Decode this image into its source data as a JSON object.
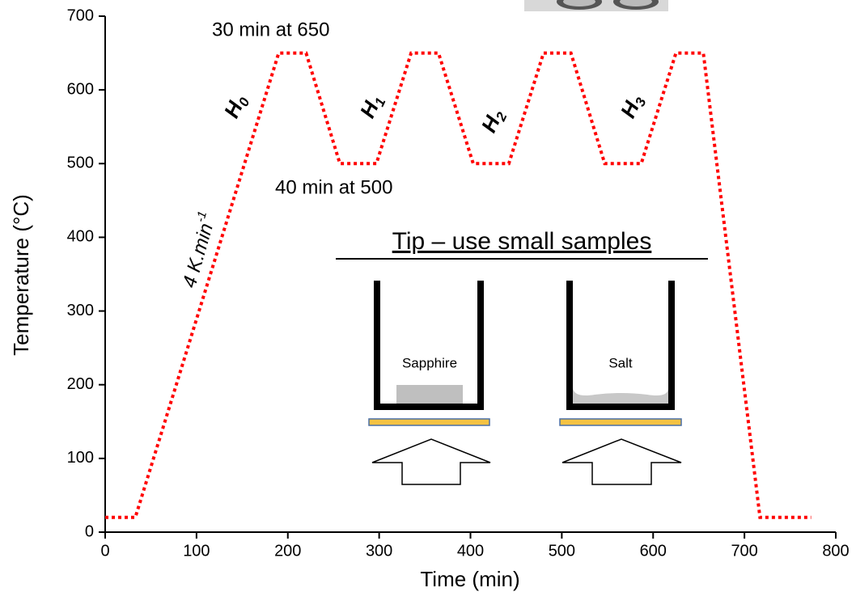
{
  "chart_data": {
    "type": "line",
    "x_label": "Time (min)",
    "y_label": "Temperature (°C)",
    "x": [
      0,
      33,
      190,
      220,
      257,
      297,
      335,
      365,
      403,
      442,
      480,
      510,
      547,
      587,
      625,
      655,
      717,
      773
    ],
    "series": [
      {
        "color": "#ff0000",
        "values": [
          20,
          20,
          650,
          650,
          500,
          500,
          650,
          650,
          500,
          500,
          650,
          650,
          500,
          500,
          650,
          650,
          20,
          20
        ]
      }
    ],
    "xlim": [
      0,
      800
    ],
    "xticks": [
      0,
      100,
      200,
      300,
      400,
      500,
      600,
      700,
      800
    ],
    "ylim": [
      0,
      700
    ],
    "yticks": [
      0,
      100,
      200,
      300,
      400,
      500,
      600,
      700
    ],
    "annotations": {
      "top_hold": "30 min at 650",
      "bottom_hold": "40 min at 500",
      "rate": {
        "main": "4 K.min",
        "sup": "-1"
      },
      "ramps": [
        {
          "main": "H",
          "sub": "0"
        },
        {
          "main": "H",
          "sub": "1"
        },
        {
          "main": "H",
          "sub": "2"
        },
        {
          "main": "H",
          "sub": "3"
        }
      ],
      "tip": "Tip – use small samples",
      "left_sample": "Sapphire",
      "right_sample": "Salt"
    }
  }
}
